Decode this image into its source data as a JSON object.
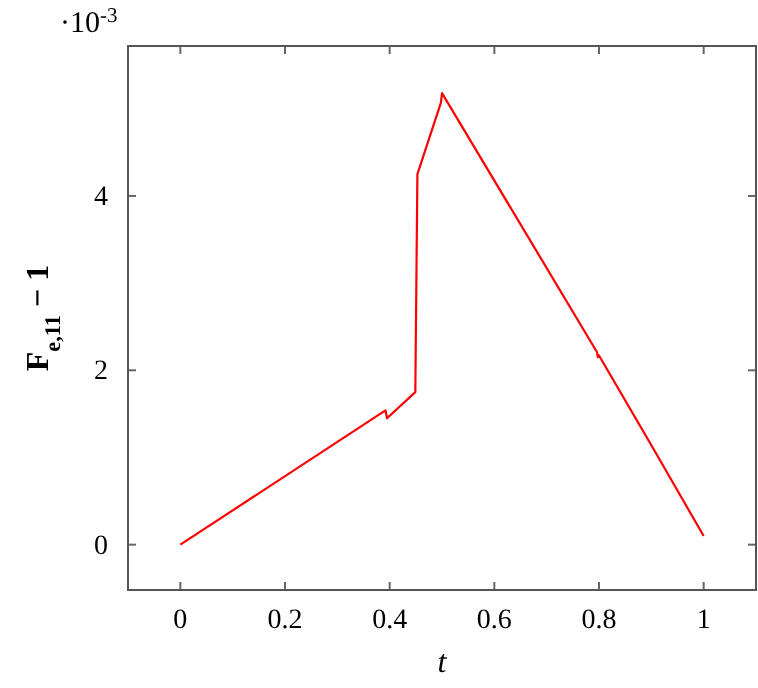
{
  "chart_data": {
    "type": "line",
    "xlabel": "t",
    "ylabel": "F$_{e,11}$ − 1",
    "annotations": [
      "·10$^{-3}$"
    ],
    "x": [
      0,
      0.392,
      0.395,
      0.449,
      0.453,
      0.498,
      0.5,
      0.796,
      0.798,
      0.8,
      0.902,
      1
    ],
    "series": [
      {
        "color": "#ff0000",
        "values": [
          0,
          1.54,
          1.45,
          1.75,
          4.25,
          5.07,
          5.18,
          2.21,
          2.15,
          2.17,
          1.12,
          0.1
        ]
      }
    ],
    "xlim": [
      -0.1,
      1.1
    ],
    "xticks": [
      0,
      0.2,
      0.4,
      0.6,
      0.8,
      1
    ],
    "ylim": [
      -0.52,
      5.72
    ],
    "yticks": [
      0,
      2,
      4
    ],
    "grid": false,
    "marker": "none",
    "line_style": "solid"
  }
}
